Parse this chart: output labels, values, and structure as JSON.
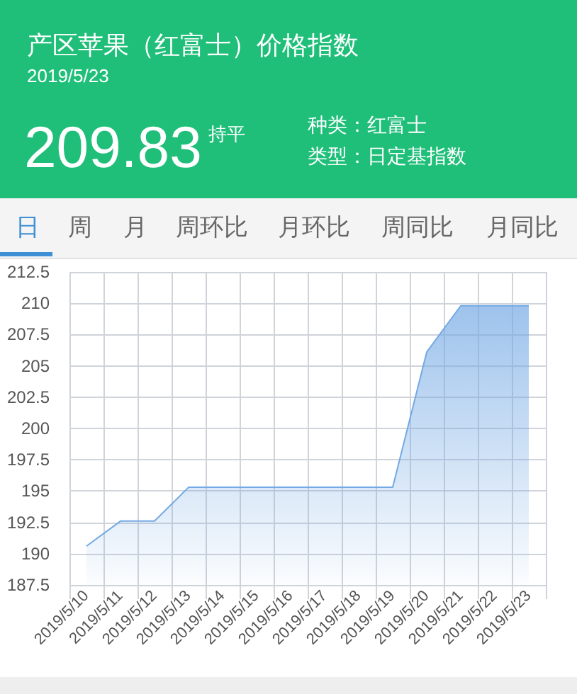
{
  "chart_data": {
    "type": "area",
    "title": "产区苹果（红富士）价格指数",
    "subtitle": "2019/5/23",
    "annotations": [
      "209.83",
      "持平",
      "种类：红富士",
      "类型：日定基指数",
      "日",
      "周",
      "月",
      "周环比",
      "月环比",
      "周同比",
      "月同比"
    ],
    "categories": [
      "2019/5/10",
      "2019/5/11",
      "2019/5/12",
      "2019/5/13",
      "2019/5/14",
      "2019/5/15",
      "2019/5/16",
      "2019/5/17",
      "2019/5/18",
      "2019/5/19",
      "2019/5/20",
      "2019/5/21",
      "2019/5/22",
      "2019/5/23"
    ],
    "values": [
      190.6,
      192.6,
      192.6,
      195.3,
      195.3,
      195.3,
      195.3,
      195.3,
      195.3,
      195.3,
      206.1,
      209.8,
      209.8,
      209.8
    ],
    "color": "#74a9e4",
    "ylim": [
      187.5,
      212.5
    ],
    "yticks": [
      187.5,
      190,
      192.5,
      195,
      197.5,
      200,
      202.5,
      205,
      207.5,
      210,
      212.5
    ],
    "grid": true,
    "marker": "none"
  }
}
